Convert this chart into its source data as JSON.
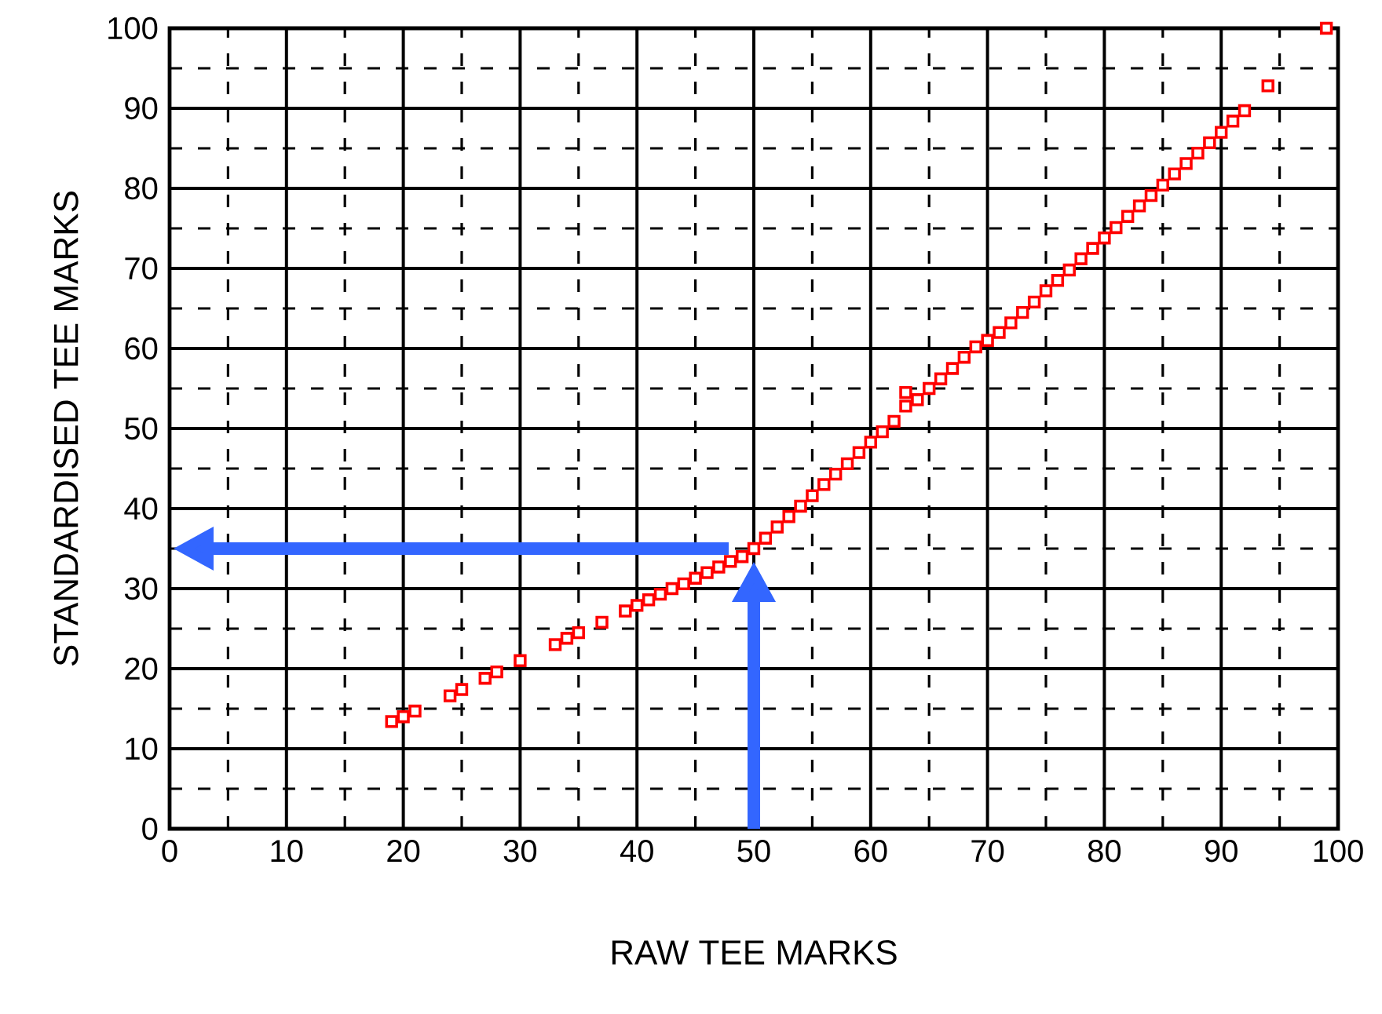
{
  "chart_data": {
    "type": "scatter",
    "xlabel": "RAW TEE MARKS",
    "ylabel": "STANDARDISED TEE MARKS",
    "xlim": [
      0,
      100
    ],
    "ylim": [
      0,
      100
    ],
    "xticks": [
      0,
      10,
      20,
      30,
      40,
      50,
      60,
      70,
      80,
      90,
      100
    ],
    "yticks": [
      0,
      10,
      20,
      30,
      40,
      50,
      60,
      70,
      80,
      90,
      100
    ],
    "grid": true,
    "marker": "square",
    "series": [
      {
        "color": "#ff0000",
        "x": [
          19,
          20,
          21,
          24,
          25,
          27,
          28,
          30,
          33,
          34,
          35,
          37,
          39,
          40,
          41,
          42,
          43,
          44,
          45,
          46,
          47,
          48,
          49,
          50,
          51,
          52,
          53,
          54,
          55,
          56,
          57,
          58,
          59,
          60,
          61,
          62,
          63,
          63,
          64,
          65,
          66,
          67,
          68,
          69,
          70,
          71,
          72,
          73,
          74,
          75,
          76,
          77,
          78,
          79,
          80,
          81,
          82,
          83,
          84,
          85,
          86,
          87,
          88,
          89,
          90,
          91,
          92,
          94,
          99
        ],
        "values": [
          13.4,
          14,
          14.7,
          16.6,
          17.4,
          18.8,
          19.6,
          21,
          23,
          23.8,
          24.5,
          25.8,
          27.2,
          27.9,
          28.6,
          29.3,
          30,
          30.6,
          31.3,
          32,
          32.7,
          33.4,
          34,
          35,
          36.3,
          37.7,
          39,
          40.3,
          41.6,
          43,
          44.3,
          45.6,
          47,
          48.3,
          49.6,
          50.9,
          52.8,
          54.5,
          53.6,
          55,
          56.2,
          57.5,
          58.9,
          60.2,
          61,
          62,
          63.2,
          64.5,
          65.8,
          67.2,
          68.5,
          69.8,
          71.2,
          72.5,
          73.8,
          75.1,
          76.5,
          77.8,
          79.1,
          80.4,
          81.8,
          83.1,
          84.4,
          85.7,
          87,
          88.4,
          89.7,
          92.8,
          100
        ]
      }
    ]
  }
}
